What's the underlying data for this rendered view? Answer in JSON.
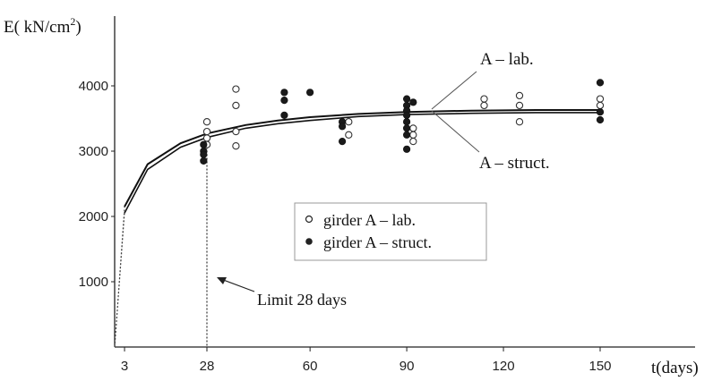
{
  "chart_data": {
    "type": "scatter",
    "ylabel": "E( kN/cm2)",
    "ylabel_parts": {
      "prefix": "E( kN/cm",
      "sup": "2",
      "suffix": ")"
    },
    "xlabel": "t(days)",
    "x_ticks": [
      3,
      28,
      60,
      90,
      120,
      150
    ],
    "y_ticks": [
      1000,
      2000,
      3000,
      4000
    ],
    "xlim": [
      0,
      160
    ],
    "ylim": [
      0,
      4500
    ],
    "grid": false,
    "legend_position": "center",
    "series": [
      {
        "name": "girder A – lab.",
        "marker": "open-circle",
        "points": [
          [
            28,
            3200
          ],
          [
            28,
            3300
          ],
          [
            28,
            3450
          ],
          [
            28,
            3100
          ],
          [
            37,
            3950
          ],
          [
            37,
            3700
          ],
          [
            37,
            3300
          ],
          [
            37,
            3080
          ],
          [
            72,
            3450
          ],
          [
            72,
            3250
          ],
          [
            92,
            3350
          ],
          [
            92,
            3250
          ],
          [
            92,
            3150
          ],
          [
            114,
            3800
          ],
          [
            114,
            3700
          ],
          [
            125,
            3850
          ],
          [
            125,
            3700
          ],
          [
            125,
            3450
          ],
          [
            150,
            3800
          ],
          [
            150,
            3700
          ]
        ]
      },
      {
        "name": "girder A – struct.",
        "marker": "filled-circle",
        "points": [
          [
            27,
            3100
          ],
          [
            27,
            3000
          ],
          [
            27,
            2950
          ],
          [
            27,
            2850
          ],
          [
            52,
            3900
          ],
          [
            52,
            3780
          ],
          [
            52,
            3550
          ],
          [
            60,
            3900
          ],
          [
            70,
            3450
          ],
          [
            70,
            3380
          ],
          [
            70,
            3150
          ],
          [
            90,
            3800
          ],
          [
            90,
            3700
          ],
          [
            90,
            3620
          ],
          [
            90,
            3550
          ],
          [
            90,
            3450
          ],
          [
            90,
            3350
          ],
          [
            90,
            3250
          ],
          [
            90,
            3030
          ],
          [
            92,
            3750
          ],
          [
            150,
            4050
          ],
          [
            150,
            3600
          ],
          [
            150,
            3480
          ]
        ]
      }
    ],
    "curves": [
      {
        "label": "A – lab.",
        "points": [
          [
            0,
            0
          ],
          [
            3,
            2150
          ],
          [
            10,
            2800
          ],
          [
            20,
            3120
          ],
          [
            28,
            3270
          ],
          [
            40,
            3400
          ],
          [
            50,
            3470
          ],
          [
            60,
            3520
          ],
          [
            75,
            3570
          ],
          [
            90,
            3600
          ],
          [
            110,
            3620
          ],
          [
            130,
            3630
          ],
          [
            150,
            3630
          ]
        ]
      },
      {
        "label": "A – struct.",
        "points": [
          [
            0,
            0
          ],
          [
            3,
            2050
          ],
          [
            10,
            2720
          ],
          [
            20,
            3060
          ],
          [
            28,
            3210
          ],
          [
            40,
            3350
          ],
          [
            50,
            3420
          ],
          [
            60,
            3470
          ],
          [
            75,
            3530
          ],
          [
            90,
            3560
          ],
          [
            110,
            3580
          ],
          [
            130,
            3590
          ],
          [
            150,
            3590
          ]
        ]
      }
    ],
    "annotations": {
      "limit_line_x": 28,
      "limit_text": "Limit 28 days"
    }
  },
  "colors": {
    "ink": "#111111",
    "paper": "#ffffff"
  }
}
